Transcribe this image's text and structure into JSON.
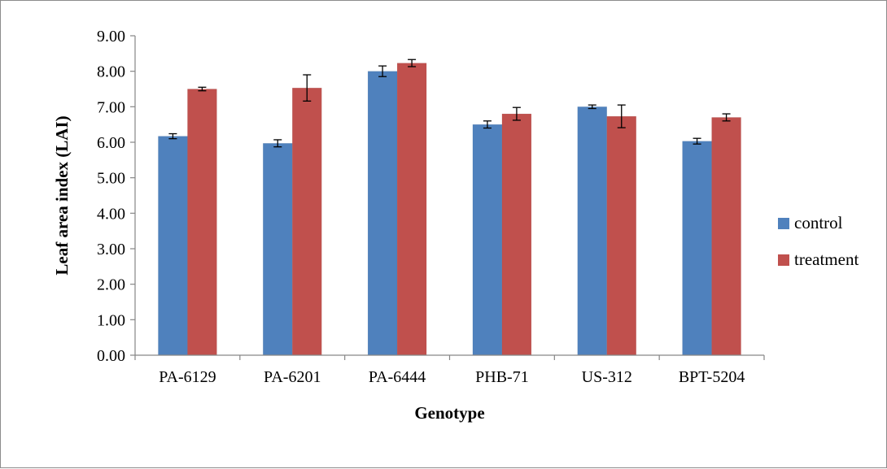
{
  "chart_data": {
    "type": "bar",
    "title": "",
    "xlabel": "Genotype",
    "ylabel": "Leaf area index (LAI)",
    "ylim": [
      0,
      9
    ],
    "ytick_step": 1,
    "ytick_decimals": 2,
    "grid": false,
    "legend_position": "right",
    "categories": [
      "PA-6129",
      "PA-6201",
      "PA-6444",
      "PHB-71",
      "US-312",
      "BPT-5204"
    ],
    "series": [
      {
        "name": "control",
        "color": "#4f81bd",
        "values": [
          6.17,
          5.97,
          8.0,
          6.5,
          7.0,
          6.03
        ],
        "errors": [
          0.07,
          0.1,
          0.15,
          0.1,
          0.05,
          0.08
        ]
      },
      {
        "name": "treatment",
        "color": "#c0504d",
        "values": [
          7.5,
          7.53,
          8.23,
          6.8,
          6.73,
          6.7
        ],
        "errors": [
          0.05,
          0.37,
          0.1,
          0.18,
          0.32,
          0.1
        ]
      }
    ]
  }
}
